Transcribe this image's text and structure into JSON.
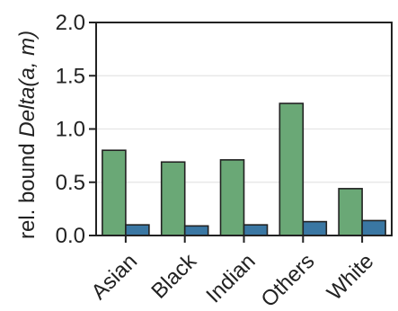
{
  "chart_data": {
    "type": "bar",
    "title": "",
    "xlabel": "",
    "ylabel_prefix": "rel. bound ",
    "ylabel_math": "Delta(a, m)",
    "categories": [
      "Asian",
      "Black",
      "Indian",
      "Others",
      "White"
    ],
    "series": [
      {
        "values": [
          0.8,
          0.69,
          0.71,
          1.24,
          0.44
        ],
        "color": "#6aa876"
      },
      {
        "values": [
          0.1,
          0.09,
          0.1,
          0.13,
          0.14
        ],
        "color": "#3a77a3"
      }
    ],
    "ylim": [
      0,
      2.0
    ],
    "yticks": [
      "0.0",
      "0.5",
      "1.0",
      "1.5",
      "2.0"
    ],
    "ytick_values": [
      0,
      0.5,
      1.0,
      1.5,
      2.0
    ],
    "grid": true,
    "legend": false
  },
  "colors": {
    "grid": "#e5e5e5",
    "axis": "#222222",
    "bar_edge": "#222222"
  }
}
